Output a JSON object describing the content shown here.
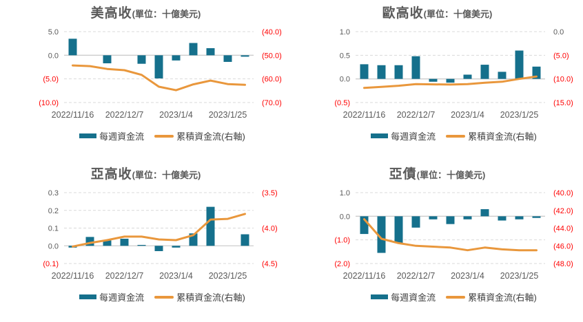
{
  "legend": {
    "bar_label": "每週資金流",
    "line_label": "累積資金流(右軸)"
  },
  "colors": {
    "bar": "#15708c",
    "line": "#e9973c",
    "negative_tick": "#ff0000",
    "tick": "#595959",
    "grid": "#d9d9d9",
    "zero_line": "#cccccc",
    "title": "#595959"
  },
  "chart_data": [
    {
      "type": "bar",
      "title": "美高收",
      "subtitle": "(單位：十億美元)",
      "x_tick_labels": [
        "2022/11/16",
        "2022/12/7",
        "2023/1/4",
        "2023/1/25"
      ],
      "x_tick_positions": [
        0,
        3,
        6,
        9
      ],
      "left_axis": {
        "tick_labels": [
          "5.0",
          "0.0",
          "(5.0)",
          "(10.0)"
        ],
        "tick_values": [
          5,
          0,
          -5,
          -10
        ],
        "max": 5,
        "min": -10
      },
      "right_axis": {
        "tick_labels": [
          "(40.0)",
          "(50.0)",
          "(60.0)",
          "(70.0)"
        ],
        "tick_values": [
          -40,
          -50,
          -60,
          -70
        ],
        "max": -40,
        "min": -70
      },
      "bar_series": {
        "name": "每週資金流",
        "axis": "left",
        "values": [
          3.5,
          0,
          -1.7,
          0,
          -1.8,
          -4.9,
          -1.1,
          2.6,
          1.5,
          -1.4,
          -0.3
        ]
      },
      "line_series": {
        "name": "累積資金流(右軸)",
        "axis": "right",
        "values": [
          -54.3,
          -54.6,
          -55.8,
          -56.3,
          -58.3,
          -63.3,
          -64.8,
          -62.3,
          -60.7,
          -62.2,
          -62.5
        ]
      }
    },
    {
      "type": "bar",
      "title": "歐高收",
      "subtitle": "(單位：十億美元)",
      "x_tick_labels": [
        "2022/11/16",
        "2022/12/7",
        "2023/1/4",
        "2023/1/25"
      ],
      "x_tick_positions": [
        0,
        3,
        6,
        9
      ],
      "left_axis": {
        "tick_labels": [
          "1.0",
          "0.5",
          "0.0",
          "(0.5)"
        ],
        "tick_values": [
          1,
          0.5,
          0,
          -0.5
        ],
        "max": 1,
        "min": -0.5
      },
      "right_axis": {
        "tick_labels": [
          "0.0",
          "(5.0)",
          "(10.0)",
          "(15.0)"
        ],
        "tick_values": [
          0,
          -5,
          -10,
          -15
        ],
        "max": 0,
        "min": -15
      },
      "bar_series": {
        "name": "每週資金流",
        "axis": "left",
        "values": [
          0.31,
          0.29,
          0.29,
          0.48,
          -0.06,
          -0.08,
          0.09,
          0.3,
          0.15,
          0.6,
          0.26
        ]
      },
      "line_series": {
        "name": "累積資金流(右軸)",
        "axis": "right",
        "values": [
          -11.9,
          -11.7,
          -11.45,
          -11.1,
          -11.15,
          -11.2,
          -11.1,
          -10.8,
          -10.6,
          -10.0,
          -9.5
        ]
      }
    },
    {
      "type": "bar",
      "title": "亞高收",
      "subtitle": "(單位：十億美元)",
      "x_tick_labels": [
        "2022/11/16",
        "2022/12/7",
        "2023/1/4",
        "2023/1/25"
      ],
      "x_tick_positions": [
        0,
        3,
        6,
        9
      ],
      "left_axis": {
        "tick_labels": [
          "0.3",
          "0.2",
          "0.1",
          "0.0",
          "(0.1)"
        ],
        "tick_values": [
          0.3,
          0.2,
          0.1,
          0,
          -0.1
        ],
        "max": 0.3,
        "min": -0.1
      },
      "right_axis": {
        "tick_labels": [
          "(3.5)",
          "(4.0)",
          "(4.5)"
        ],
        "tick_values": [
          -3.5,
          -4.0,
          -4.5
        ],
        "max": -3.5,
        "min": -4.5
      },
      "bar_series": {
        "name": "每週資金流",
        "axis": "left",
        "values": [
          -0.01,
          0.05,
          0.03,
          0.04,
          0.005,
          -0.03,
          -0.01,
          0.07,
          0.22,
          0,
          0.065
        ]
      },
      "line_series": {
        "name": "累積資金流(右軸)",
        "axis": "right",
        "values": [
          -4.26,
          -4.21,
          -4.17,
          -4.12,
          -4.12,
          -4.16,
          -4.17,
          -4.1,
          -3.88,
          -3.87,
          -3.8
        ]
      }
    },
    {
      "type": "bar",
      "title": "亞債",
      "subtitle": "(單位：十億美元)",
      "x_tick_labels": [
        "2022/11/16",
        "2022/12/7",
        "2023/1/4",
        "2023/1/25"
      ],
      "x_tick_positions": [
        0,
        3,
        6,
        9
      ],
      "left_axis": {
        "tick_labels": [
          "1.0",
          "0.0",
          "(1.0)",
          "(2.0)"
        ],
        "tick_values": [
          1,
          0,
          -1,
          -2
        ],
        "max": 1,
        "min": -2
      },
      "right_axis": {
        "tick_labels": [
          "(40.0)",
          "(42.0)",
          "(44.0)",
          "(46.0)",
          "(48.0)"
        ],
        "tick_values": [
          -40,
          -42,
          -44,
          -46,
          -48
        ],
        "max": -40,
        "min": -48
      },
      "bar_series": {
        "name": "每週資金流",
        "axis": "left",
        "values": [
          -0.75,
          -1.55,
          -1.13,
          -0.48,
          -0.13,
          -0.33,
          -0.13,
          0.3,
          -0.18,
          -0.13,
          -0.07
        ]
      },
      "line_series": {
        "name": "累積資金流(右軸)",
        "axis": "right",
        "values": [
          -43.0,
          -45.2,
          -45.7,
          -46.0,
          -46.1,
          -46.2,
          -46.5,
          -46.2,
          -46.4,
          -46.5,
          -46.5
        ]
      }
    }
  ]
}
